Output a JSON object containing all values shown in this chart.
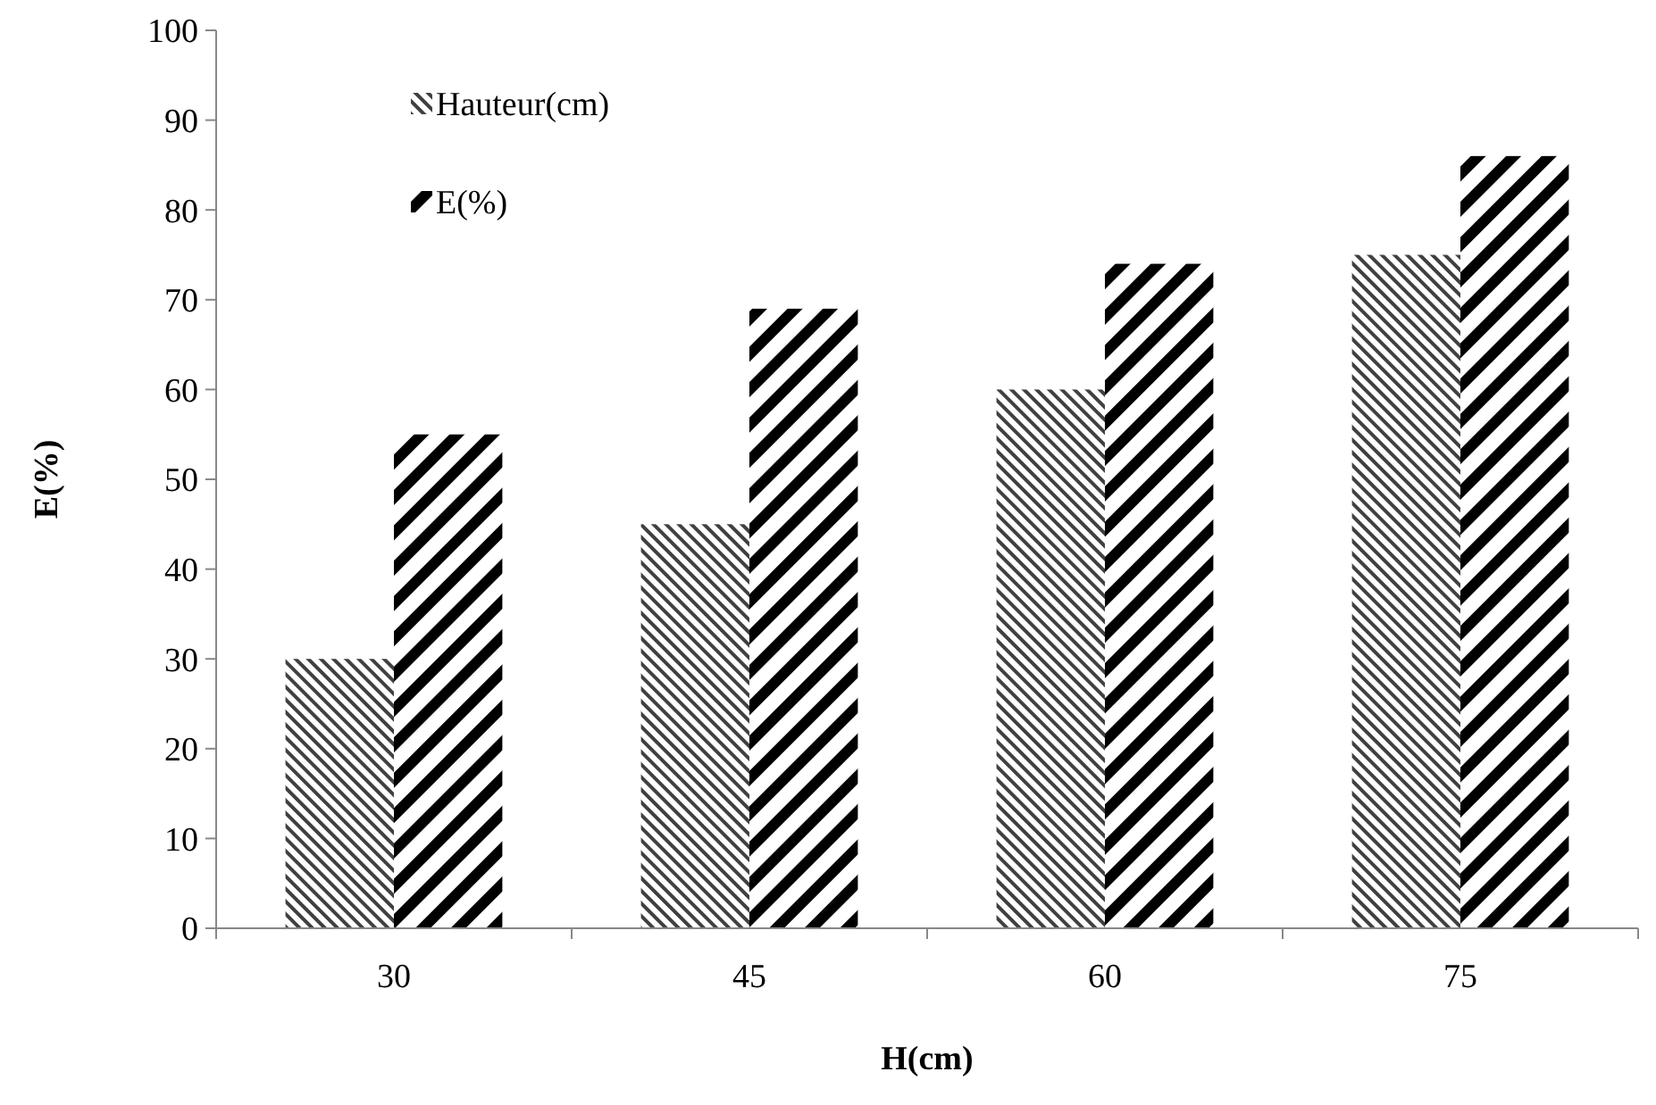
{
  "chart_data": {
    "type": "bar",
    "xlabel": "H(cm)",
    "ylabel": "E(%)",
    "categories": [
      "30",
      "45",
      "60",
      "75"
    ],
    "series": [
      {
        "name": "Hauteur(cm)",
        "color": "#404040",
        "values": [
          30,
          45,
          60,
          75
        ]
      },
      {
        "name": "E(%)",
        "color": "#000000",
        "values": [
          55,
          69,
          74,
          86
        ]
      }
    ],
    "ylim": [
      0,
      100
    ],
    "yticks": [
      0,
      10,
      20,
      30,
      40,
      50,
      60,
      70,
      80,
      90,
      100
    ],
    "grid": false,
    "legend": "top left"
  }
}
